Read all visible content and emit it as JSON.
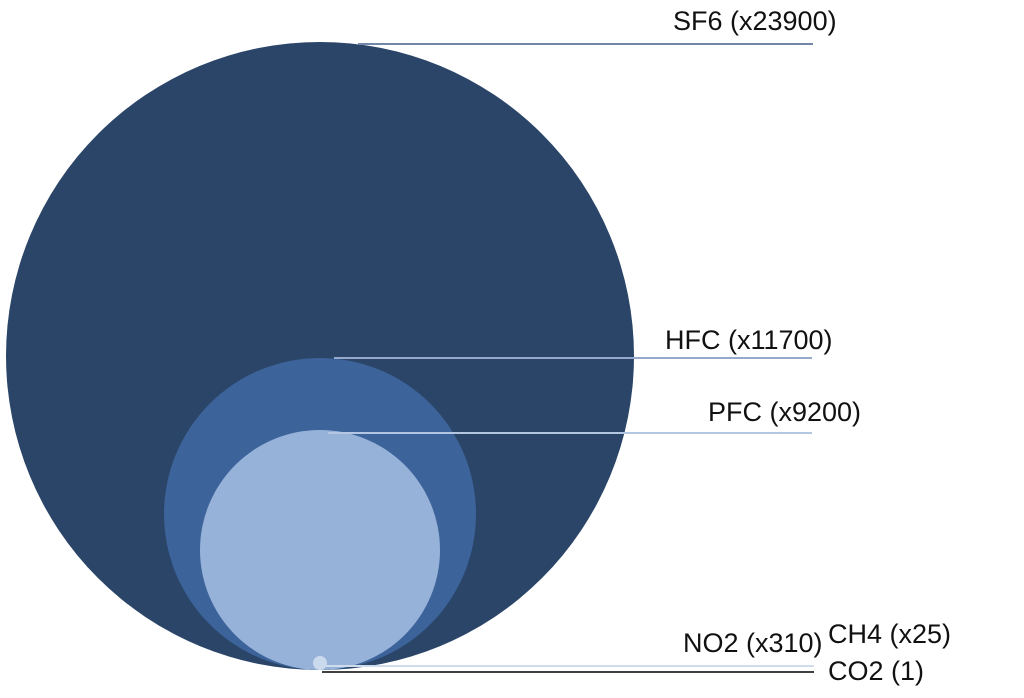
{
  "chart_data": {
    "type": "bubble",
    "description_layout": "nested circles sharing a common bottom tangent point; circle radius proportional to global-warming-potential multiplier relative to CO2",
    "items": [
      {
        "gas": "SF6",
        "label": "SF6 (x23900)",
        "multiplier": 23900,
        "color": "#2A4568",
        "radius_px": 314
      },
      {
        "gas": "HFC",
        "label": "HFC (x11700)",
        "multiplier": 11700,
        "color": "#3C639A",
        "radius_px": 156
      },
      {
        "gas": "PFC",
        "label": "PFC (x9200)",
        "multiplier": 9200,
        "color": "#96B2D9",
        "radius_px": 120
      },
      {
        "gas": "NO2",
        "label": "NO2 (x310)",
        "multiplier": 310,
        "color": "#CBD9EC",
        "radius_px": 7
      },
      {
        "gas": "CH4",
        "label": "CH4 (x25)",
        "multiplier": 25,
        "color": "#CBD9EC",
        "radius_px": 1
      },
      {
        "gas": "CO2",
        "label": "CO2 (1)",
        "multiplier": 1,
        "color": "#CBD9EC",
        "radius_px": 0
      }
    ],
    "leader_lines": {
      "sf6": "#7188A8",
      "hfc": "#94A9CC",
      "pfc": "#B3C6E2",
      "no2": "#CFDCEB",
      "co2": "#404040"
    },
    "legend_position": "right",
    "grid": false,
    "background": "#FFFFFF",
    "text_color": "#111111"
  }
}
